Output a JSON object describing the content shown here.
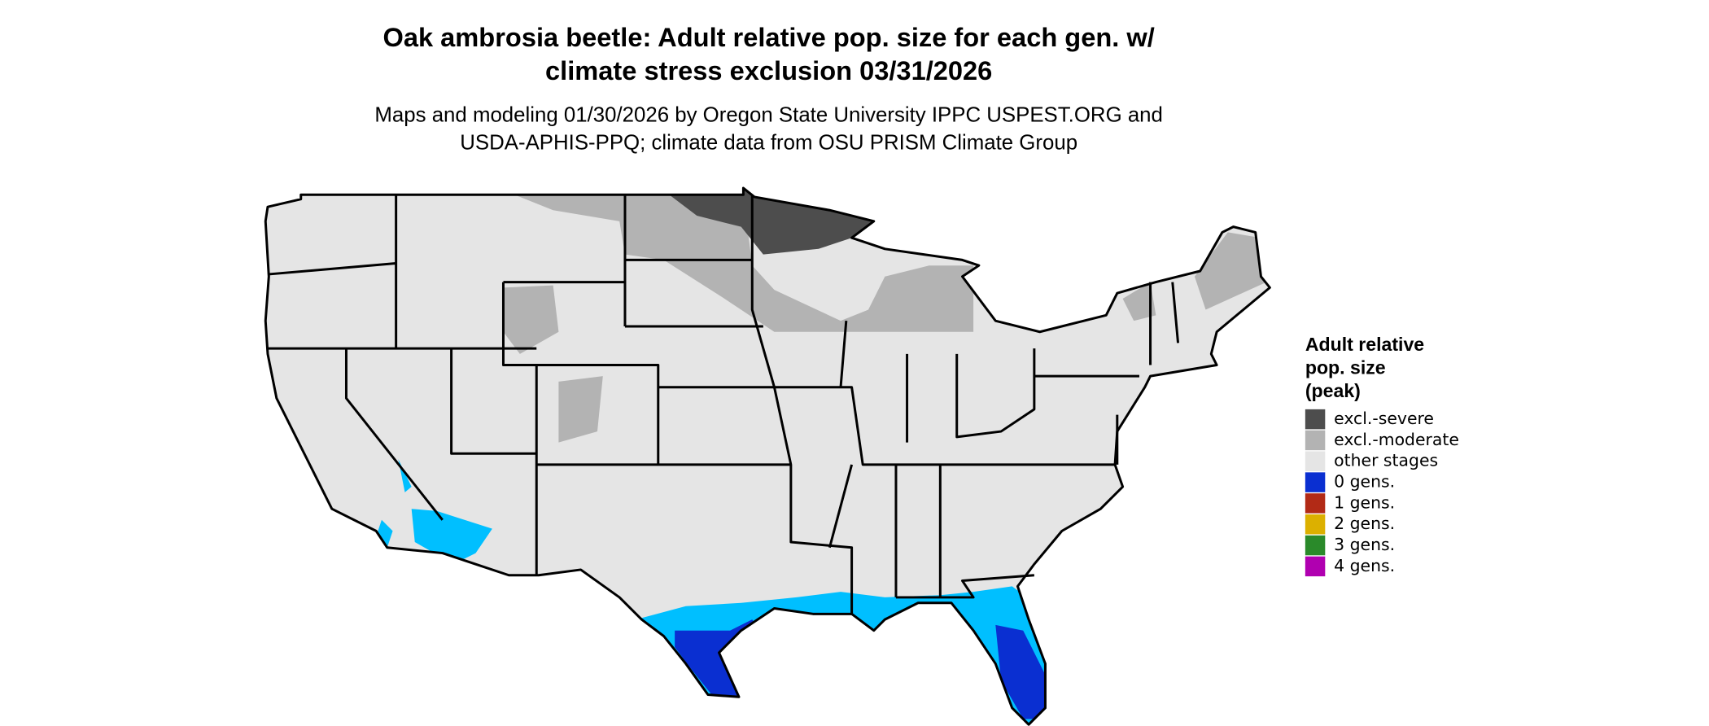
{
  "title": [
    "Oak ambrosia beetle: Adult relative pop. size for each gen. w/",
    "climate stress exclusion 03/31/2026"
  ],
  "subtitle": [
    "Maps and modeling 01/30/2026 by Oregon State University IPPC USPEST.ORG and",
    "USDA-APHIS-PPQ; climate data from OSU PRISM Climate Group"
  ],
  "legend": {
    "title": [
      "Adult relative",
      "pop. size",
      "(peak)"
    ],
    "items": [
      {
        "label": "excl.-severe",
        "color": "#4d4d4d"
      },
      {
        "label": "excl.-moderate",
        "color": "#b3b3b3"
      },
      {
        "label": "other stages",
        "color": "#e5e5e5"
      },
      {
        "label": "0 gens.",
        "color": "#0a2fd1"
      },
      {
        "label": "1 gens.",
        "color": "#b22a16"
      },
      {
        "label": "2 gens.",
        "color": "#dcb000"
      },
      {
        "label": "3 gens.",
        "color": "#2a8a2a"
      },
      {
        "label": "4 gens.",
        "color": "#b000b0"
      }
    ]
  }
}
